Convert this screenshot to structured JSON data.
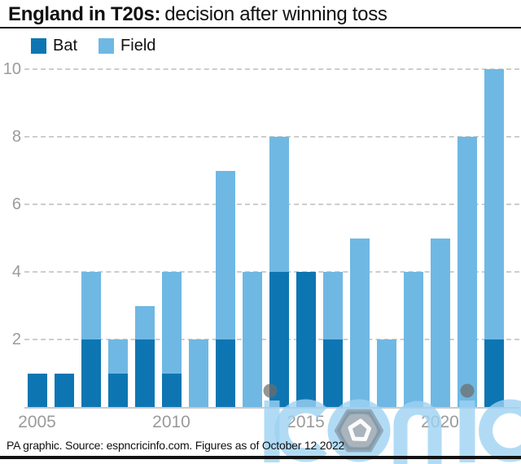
{
  "title": {
    "bold": "England in T20s:",
    "regular": "decision after winning toss"
  },
  "legend": [
    {
      "label": "Bat",
      "color": "#0d76b2"
    },
    {
      "label": "Field",
      "color": "#6fb8e3"
    }
  ],
  "footer": "PA graphic. Source: espncricinfo.com. Figures as of October 12 2022",
  "watermark_text": "iconic",
  "colors": {
    "bat": "#0d76b2",
    "field": "#6fb8e3",
    "grid": "#cdcdcd",
    "axis_text": "#9b9b9b",
    "rule": "#121212",
    "watermark_blue": "#a9d8f3"
  },
  "chart_data": {
    "type": "bar",
    "stacked": true,
    "title": "England in T20s: decision after winning toss",
    "categories": [
      2005,
      2006,
      2007,
      2008,
      2009,
      2010,
      2011,
      2012,
      2013,
      2014,
      2015,
      2016,
      2017,
      2018,
      2019,
      2020,
      2021,
      2022
    ],
    "series": [
      {
        "name": "Bat",
        "color": "#0d76b2",
        "values": [
          1,
          1,
          2,
          1,
          2,
          1,
          0,
          2,
          0,
          4,
          4,
          2,
          0,
          0,
          0,
          0,
          0,
          2
        ]
      },
      {
        "name": "Field",
        "color": "#6fb8e3",
        "values": [
          0,
          0,
          2,
          1,
          1,
          3,
          2,
          5,
          4,
          4,
          0,
          2,
          5,
          2,
          4,
          5,
          8,
          8
        ]
      }
    ],
    "totals": [
      1,
      1,
      4,
      2,
      3,
      4,
      2,
      7,
      4,
      8,
      4,
      4,
      5,
      2,
      4,
      5,
      8,
      10
    ],
    "xlabel": "",
    "ylabel": "",
    "ylim": [
      0,
      10
    ],
    "yticks": [
      2,
      4,
      6,
      8,
      10
    ],
    "xticks": [
      2005,
      2010,
      2015,
      2020
    ],
    "grid": "horizontal-dashed",
    "legend_position": "top-left"
  }
}
